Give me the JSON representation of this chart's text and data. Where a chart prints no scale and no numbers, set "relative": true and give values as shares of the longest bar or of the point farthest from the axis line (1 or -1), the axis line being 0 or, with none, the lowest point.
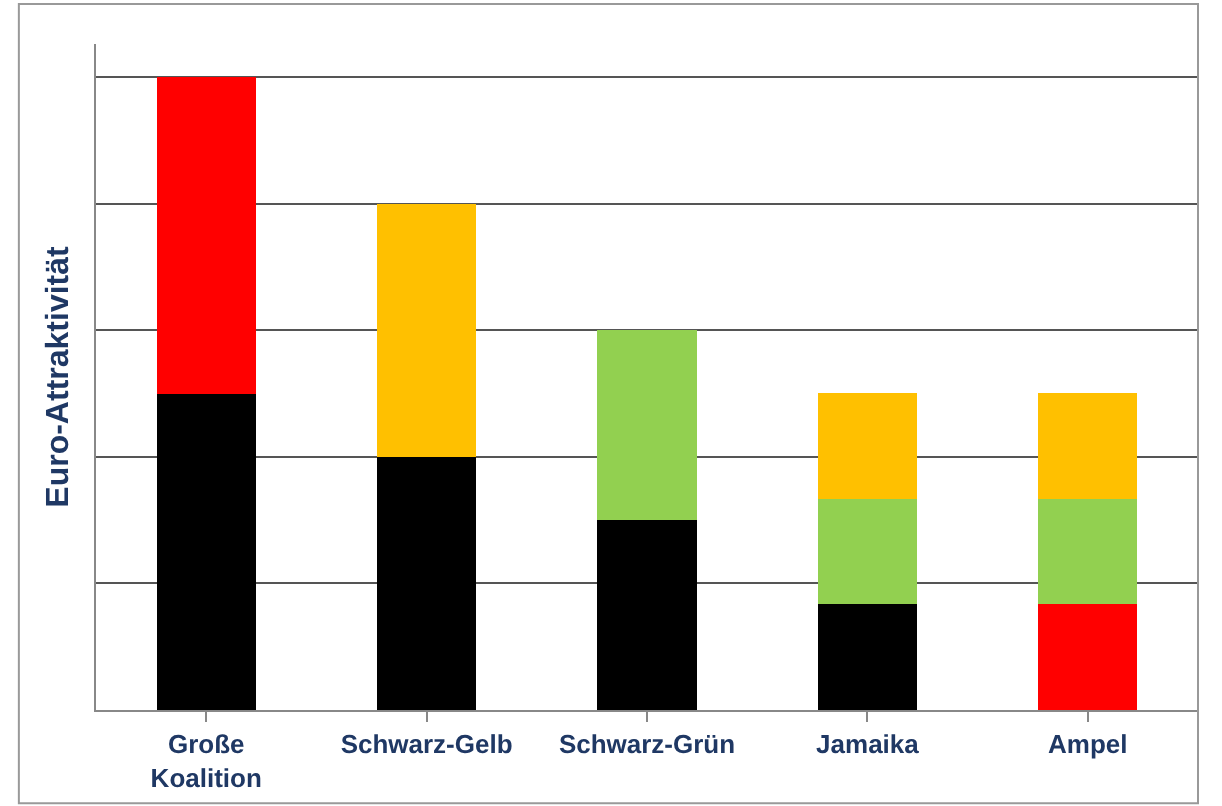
{
  "chart_data": {
    "type": "bar",
    "stacked": true,
    "relative": true,
    "ylabel": "Euro-Attraktivität",
    "grid": "y",
    "categories": [
      "Große Koalition",
      "Schwarz-Gelb",
      "Schwarz-Grün",
      "Jamaika",
      "Ampel"
    ],
    "series": [
      {
        "colors": [
          "#000000",
          "#000000",
          "#000000",
          "#000000",
          "#ff0000"
        ],
        "values": [
          0.5,
          0.4,
          0.3,
          0.167,
          0.167
        ]
      },
      {
        "colors": [
          "#ff0000",
          "#ffc000",
          "#92d050",
          "#92d050",
          "#92d050"
        ],
        "values": [
          0.5,
          0.4,
          0.3,
          0.167,
          0.167
        ]
      },
      {
        "colors": [
          "#ffc000",
          "#ffc000",
          "#ffc000",
          "#ffc000",
          "#ffc000"
        ],
        "values": [
          null,
          null,
          null,
          0.167,
          0.167
        ]
      }
    ]
  }
}
